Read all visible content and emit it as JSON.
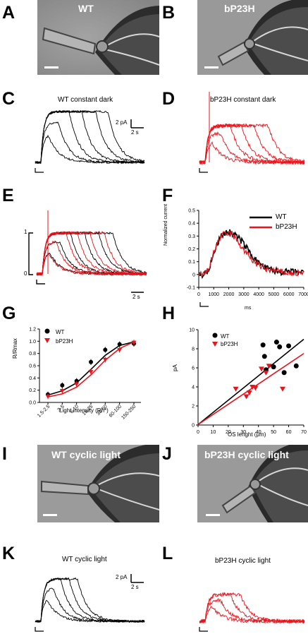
{
  "panel_letters": {
    "A": "A",
    "B": "B",
    "C": "C",
    "D": "D",
    "E": "E",
    "F": "F",
    "G": "G",
    "H": "H",
    "I": "I",
    "J": "J",
    "K": "K",
    "L": "L"
  },
  "micrographs": {
    "a_label": "WT",
    "b_label": "bP23H",
    "i_label": "WT cyclic light",
    "j_label": "bP23H cyclic light"
  },
  "traces": {
    "c_title": "WT constant dark",
    "d_title": "bP23H constant dark",
    "k_title": "WT cyclic light",
    "l_title": "bP23H cyclic light",
    "scale_current": "2 pA",
    "scale_time": "2 s",
    "e_norm_top": "1",
    "e_norm_bottom": "0",
    "colors": {
      "wt": "#000000",
      "bp23h": "#e8141c"
    }
  },
  "chart_data": [
    {
      "panel": "F",
      "type": "line",
      "xlabel": "ms",
      "ylabel": "Normalized current",
      "xlim": [
        0,
        7000
      ],
      "ylim": [
        -0.1,
        0.5
      ],
      "xticks": [
        "0",
        "1000",
        "2000",
        "3000",
        "4000",
        "5000",
        "6000",
        "7000"
      ],
      "yticks": [
        "-0.1",
        "0",
        "0.1",
        "0.2",
        "0.3",
        "0.4",
        "0.5"
      ],
      "legend_position": "top-right",
      "series": [
        {
          "name": "WT",
          "color": "#000000",
          "x": [
            0,
            300,
            600,
            900,
            1200,
            1500,
            1800,
            2100,
            2400,
            2700,
            3000,
            3300,
            3600,
            3900,
            4200,
            4500,
            5000,
            5500,
            6000,
            6500,
            7000
          ],
          "y": [
            0.0,
            0.0,
            0.02,
            0.12,
            0.23,
            0.3,
            0.33,
            0.33,
            0.31,
            0.28,
            0.24,
            0.19,
            0.14,
            0.1,
            0.07,
            0.05,
            0.03,
            0.02,
            0.02,
            0.02,
            0.01
          ]
        },
        {
          "name": "bP23H",
          "color": "#e8141c",
          "x": [
            0,
            300,
            600,
            900,
            1200,
            1500,
            1800,
            2100,
            2400,
            2700,
            3000,
            3300,
            3600,
            3900,
            4200,
            4500,
            5000,
            5500,
            6000,
            6500,
            7000
          ],
          "y": [
            0.0,
            0.0,
            0.03,
            0.13,
            0.24,
            0.3,
            0.32,
            0.32,
            0.29,
            0.24,
            0.19,
            0.15,
            0.11,
            0.08,
            0.06,
            0.04,
            0.03,
            0.02,
            0.01,
            0.01,
            0.01
          ]
        }
      ]
    },
    {
      "panel": "G",
      "type": "scatter",
      "xlabel": "Light intensity (Rh*)",
      "ylabel": "R/Rmax",
      "ylim": [
        0.0,
        1.2
      ],
      "categories": [
        "1.5-2.5",
        "3-5",
        "6-10",
        "15-25",
        "30-50",
        "60-100",
        "150-250"
      ],
      "yticks": [
        "0.0",
        "0.2",
        "0.4",
        "0.6",
        "0.8",
        "1.0",
        "1.2"
      ],
      "legend_position": "top-left",
      "series": [
        {
          "name": "WT",
          "color": "#000000",
          "marker": "circle",
          "values": [
            0.13,
            0.28,
            0.35,
            0.66,
            0.86,
            0.95,
            0.96
          ],
          "fit": [
            0.12,
            0.19,
            0.32,
            0.54,
            0.77,
            0.93,
            0.99
          ]
        },
        {
          "name": "bP23H",
          "color": "#e8141c",
          "marker": "triangle",
          "values": [
            0.1,
            0.19,
            0.3,
            0.5,
            0.7,
            0.86,
            0.98
          ],
          "fit": [
            0.09,
            0.14,
            0.25,
            0.45,
            0.69,
            0.88,
            0.99
          ]
        }
      ]
    },
    {
      "panel": "H",
      "type": "scatter",
      "xlabel": "OS lenght (μm)",
      "ylabel": "pA",
      "xlim": [
        0,
        70
      ],
      "ylim": [
        0,
        10
      ],
      "xticks": [
        "0",
        "10",
        "20",
        "30",
        "40",
        "50",
        "60",
        "70"
      ],
      "yticks": [
        "0",
        "2",
        "4",
        "6",
        "8",
        "10"
      ],
      "legend_position": "top-left",
      "series": [
        {
          "name": "WT",
          "color": "#000000",
          "marker": "circle",
          "x": [
            43,
            44,
            45,
            50,
            52,
            54,
            57,
            60,
            65
          ],
          "y": [
            8.4,
            7.2,
            5.8,
            6.1,
            8.7,
            8.2,
            5.5,
            8.3,
            6.2
          ],
          "fit_line": [
            [
              0,
              0.05
            ],
            [
              70,
              9.0
            ]
          ]
        },
        {
          "name": "bP23H",
          "color": "#e8141c",
          "marker": "triangle",
          "x": [
            25,
            32,
            34,
            36,
            38,
            42,
            45,
            47,
            56
          ],
          "y": [
            3.8,
            3.0,
            3.4,
            4.0,
            3.9,
            5.9,
            5.5,
            6.2,
            3.8
          ],
          "fit_line": [
            [
              0,
              0.05
            ],
            [
              70,
              7.5
            ]
          ]
        }
      ]
    }
  ],
  "chart_text": {
    "f_legend_wt": "WT",
    "f_legend_bp": "bP23H",
    "f_xlabel": "ms",
    "f_ylabel": "Normalized current",
    "g_legend_wt": "WT",
    "g_legend_bp": "bP23H",
    "g_xlabel": "Light intensity (Rh*)",
    "g_ylabel": "R/Rmax",
    "h_legend_wt": "WT",
    "h_legend_bp": "bP23H",
    "h_xlabel": "OS lenght (μm)",
    "h_ylabel": "pA"
  }
}
